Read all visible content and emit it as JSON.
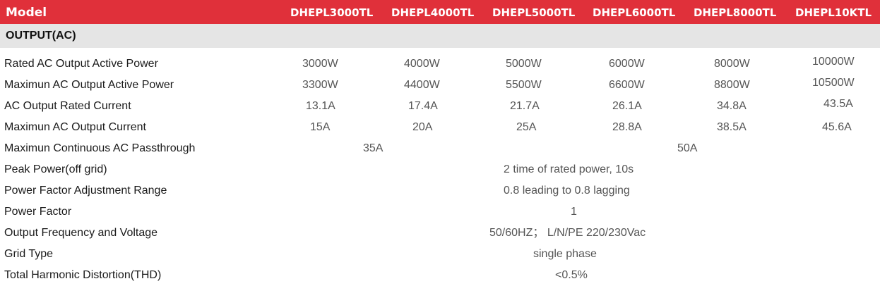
{
  "header": {
    "model_label": "Model",
    "models": [
      "DHEPL3000TL",
      "DHEPL4000TL",
      "DHEPL5000TL",
      "DHEPL6000TL",
      "DHEPL8000TL",
      "DHEPL10KTL"
    ]
  },
  "section": {
    "title": "OUTPUT(AC)"
  },
  "rows": [
    {
      "label": "Rated AC Output Active Power",
      "values": [
        "3000W",
        "4000W",
        "5000W",
        "6000W",
        "8000W",
        "10000W"
      ]
    },
    {
      "label": "Maximun AC Output Active Power",
      "values": [
        "3300W",
        "4400W",
        "5500W",
        "6600W",
        "8800W",
        "10500W"
      ]
    },
    {
      "label": "AC Output Rated Current",
      "values": [
        "13.1A",
        "17.4A",
        "21.7A",
        "26.1A",
        "34.8A",
        "43.5A"
      ]
    },
    {
      "label": "Maximun AC Output Current",
      "values": [
        "15A",
        "20A",
        "25A",
        "28.8A",
        "38.5A",
        "45.6A"
      ]
    },
    {
      "label": "Maximun Continuous AC Passthrough",
      "values": [
        "35A",
        "50A"
      ]
    },
    {
      "label": "Peak Power(off grid)",
      "values": [
        "2 time of rated power, 10s"
      ]
    },
    {
      "label": "Power Factor Adjustment Range",
      "values": [
        "0.8 leading to 0.8 lagging"
      ]
    },
    {
      "label": "Power Factor",
      "values": [
        "1"
      ]
    },
    {
      "label": "Output Frequency and Voltage",
      "values": [
        "50/60HZ； L/N/PE 220/230Vac"
      ]
    },
    {
      "label": "Grid Type",
      "values": [
        "single phase"
      ]
    },
    {
      "label": "Total Harmonic Distortion(THD)",
      "values": [
        "<0.5%"
      ]
    }
  ],
  "colors": {
    "header_bg": "#e0303a",
    "section_bg": "#e5e5e5"
  }
}
